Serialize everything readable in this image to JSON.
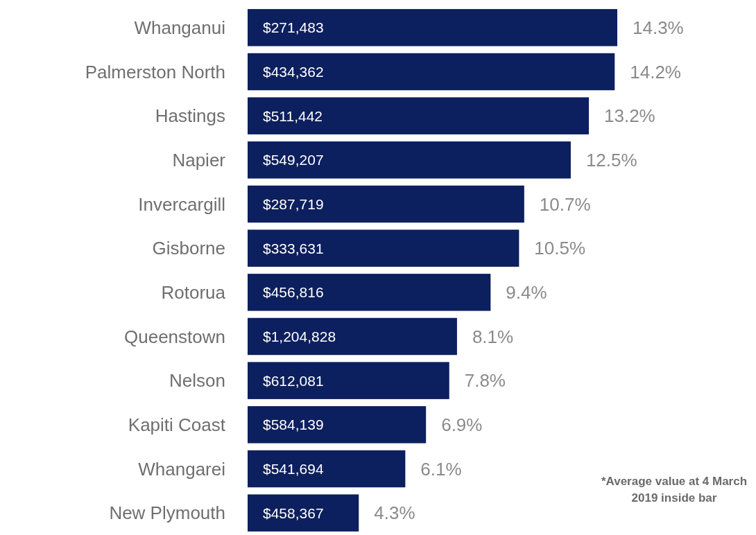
{
  "chart_data": {
    "type": "bar",
    "orientation": "horizontal",
    "categories": [
      "Whanganui",
      "Palmerston North",
      "Hastings",
      "Napier",
      "Invercargill",
      "Gisborne",
      "Rotorua",
      "Queenstown",
      "Nelson",
      "Kapiti Coast",
      "Whangarei",
      "New Plymouth"
    ],
    "values": [
      14.3,
      14.2,
      13.2,
      12.5,
      10.7,
      10.5,
      9.4,
      8.1,
      7.8,
      6.9,
      6.1,
      4.3
    ],
    "value_labels": [
      "14.3%",
      "14.2%",
      "13.2%",
      "12.5%",
      "10.7%",
      "10.5%",
      "9.4%",
      "8.1%",
      "7.8%",
      "6.9%",
      "6.1%",
      "4.3%"
    ],
    "color": "#0c1f5e",
    "annotations": [
      {
        "text": "$271,483",
        "y": "Whanganui"
      },
      {
        "text": "$434,362",
        "y": "Palmerston North"
      },
      {
        "text": "$511,442",
        "y": "Hastings"
      },
      {
        "text": "$549,207",
        "y": "Napier"
      },
      {
        "text": "$287,719",
        "y": "Invercargill"
      },
      {
        "text": "$333,631",
        "y": "Gisborne"
      },
      {
        "text": "$456,816",
        "y": "Rotorua"
      },
      {
        "text": "$1,204,828",
        "y": "Queenstown"
      },
      {
        "text": "$612,081",
        "y": "Nelson"
      },
      {
        "text": "$584,139",
        "y": "Kapiti Coast"
      },
      {
        "text": "$541,694",
        "y": "Whangarei"
      },
      {
        "text": "$458,367",
        "y": "New Plymouth"
      },
      "*Average value at 4 March 2019 inside bar"
    ]
  }
}
